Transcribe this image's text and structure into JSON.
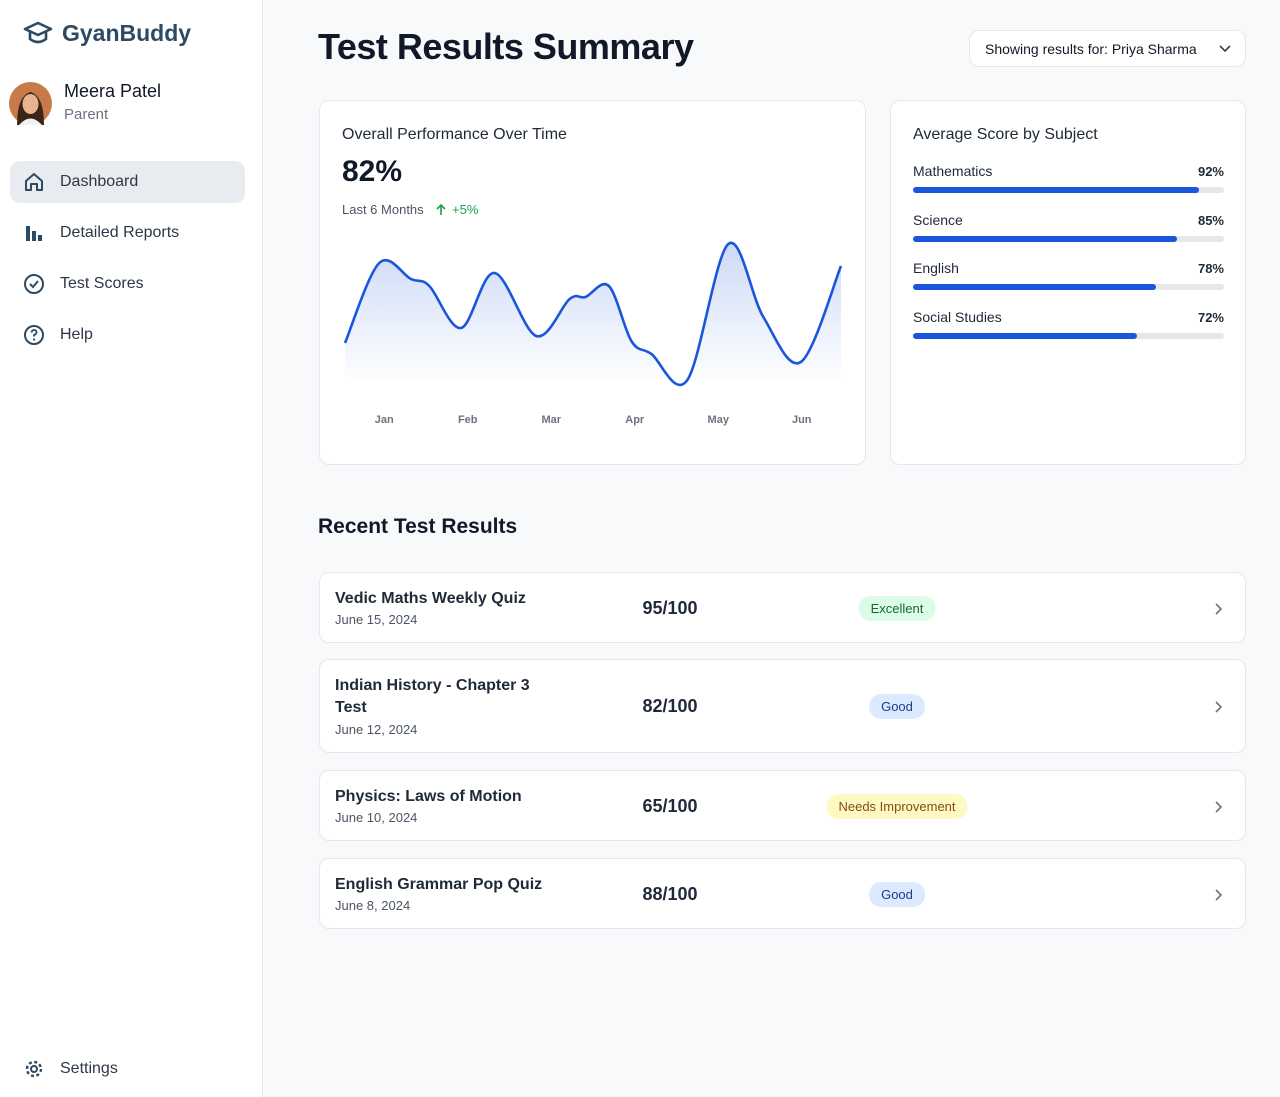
{
  "sidebar": {
    "brand": "GyanBuddy",
    "user": {
      "name": "Meera Patel",
      "role": "Parent"
    },
    "nav": [
      {
        "label": "Dashboard",
        "active": true
      },
      {
        "label": "Detailed Reports",
        "active": false
      },
      {
        "label": "Test Scores",
        "active": false
      },
      {
        "label": "Help",
        "active": false
      }
    ],
    "settings": "Settings"
  },
  "header": {
    "title": "Test Results Summary",
    "selector": "Showing results for: Priya Sharma"
  },
  "performance": {
    "title": "Overall Performance Over Time",
    "value": "82%",
    "period": "Last 6 Months",
    "change": "+5%"
  },
  "subjects": {
    "title": "Average Score by Subject"
  },
  "chart_data": [
    {
      "type": "line",
      "color": "#1a56db",
      "x": [
        -0.47,
        -0.06,
        0.32,
        0.54,
        0.92,
        1.32,
        1.82,
        2.22,
        2.41,
        2.69,
        2.96,
        3.2,
        3.63,
        4.12,
        4.54,
        4.99,
        5.47
      ],
      "values": [
        69.4,
        93.4,
        88.6,
        86.5,
        73.9,
        90.4,
        71.5,
        82.6,
        83.2,
        86.5,
        70,
        66.1,
        58.3,
        99.1,
        77.2,
        63.7,
        92.5
      ],
      "xlim": [
        -0.47,
        5.47
      ],
      "ylim": [
        55,
        100
      ],
      "xticks": [
        {
          "value": 0,
          "label": "Jan"
        },
        {
          "value": 1,
          "label": "Feb"
        },
        {
          "value": 2,
          "label": "Mar"
        },
        {
          "value": 3,
          "label": "Apr"
        },
        {
          "value": 4,
          "label": "May"
        },
        {
          "value": 5,
          "label": "Jun"
        }
      ],
      "grid": false
    },
    {
      "type": "hbar",
      "color": "#1a56db",
      "categories": [
        "Mathematics",
        "Science",
        "English",
        "Social Studies"
      ],
      "values": [
        92,
        85,
        78,
        72
      ],
      "value_labels": [
        "92%",
        "85%",
        "78%",
        "72%"
      ],
      "xlim": [
        0,
        100
      ]
    }
  ],
  "recent": {
    "title": "Recent Test Results",
    "items": [
      {
        "name": "Vedic Maths Weekly Quiz",
        "date": "June 15, 2024",
        "score": "95/100",
        "badge": "Excellent",
        "badge_color": "green"
      },
      {
        "name": "Indian History - Chapter 3 Test",
        "date": "June 12, 2024",
        "score": "82/100",
        "badge": "Good",
        "badge_color": "blue"
      },
      {
        "name": "Physics: Laws of Motion",
        "date": "June 10, 2024",
        "score": "65/100",
        "badge": "Needs Improvement",
        "badge_color": "yellow"
      },
      {
        "name": "English Grammar Pop Quiz",
        "date": "June 8, 2024",
        "score": "88/100",
        "badge": "Good",
        "badge_color": "blue"
      }
    ]
  }
}
